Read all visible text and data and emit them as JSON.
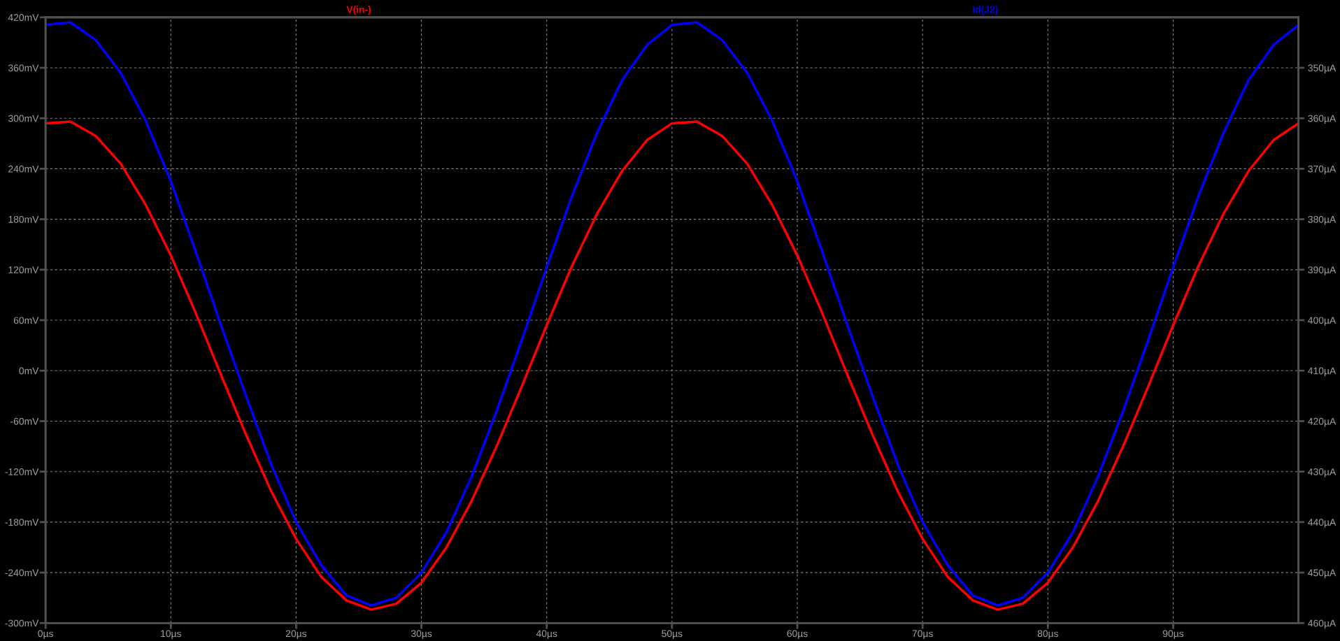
{
  "chart_data": {
    "type": "line",
    "x": [
      0,
      2,
      4,
      6,
      8,
      10,
      12,
      14,
      16,
      18,
      20,
      22,
      24,
      26,
      28,
      30,
      32,
      34,
      36,
      38,
      40,
      42,
      44,
      46,
      48,
      50,
      52,
      54,
      56,
      58,
      60,
      62,
      64,
      66,
      68,
      70,
      72,
      74,
      76,
      78,
      80,
      82,
      84,
      86,
      88,
      90,
      92,
      94,
      96,
      98,
      100
    ],
    "series": [
      {
        "name": "V(in-)",
        "color": "#ff0000",
        "values": [
          294,
          296,
          279,
          246,
          197,
          137,
          68,
          -5,
          -76,
          -143,
          -200,
          -245,
          -273,
          -284,
          -277,
          -252,
          -210,
          -155,
          -90,
          -19,
          54,
          124,
          186,
          237,
          274,
          294,
          296,
          279,
          246,
          197,
          137,
          68,
          -5,
          -76,
          -143,
          -200,
          -245,
          -273,
          -284,
          -277,
          -252,
          -210,
          -155,
          -90,
          -19,
          54,
          124,
          186,
          237,
          274,
          294
        ]
      },
      {
        "name": "Id(J2)",
        "color": "#0000ff",
        "axis": "y2",
        "values": [
          341.5,
          341,
          344.5,
          351,
          360.5,
          372.5,
          386.5,
          401,
          415,
          428.5,
          440,
          448.5,
          454.5,
          456.5,
          455,
          450,
          442,
          431,
          418,
          404,
          389.5,
          375.5,
          363,
          352.5,
          345.5,
          341.5,
          341,
          344.5,
          351,
          360.5,
          372.5,
          386.5,
          401,
          415,
          428.5,
          440,
          448.5,
          454.5,
          456.5,
          455,
          450,
          442,
          431,
          418,
          404,
          389.5,
          375.5,
          363,
          352.5,
          345.5,
          341.5
        ]
      }
    ],
    "xlim": [
      0,
      100
    ],
    "xticks": [
      {
        "value": 0,
        "label": "0µs"
      },
      {
        "value": 10,
        "label": "10µs"
      },
      {
        "value": 20,
        "label": "20µs"
      },
      {
        "value": 30,
        "label": "30µs"
      },
      {
        "value": 40,
        "label": "40µs"
      },
      {
        "value": 50,
        "label": "50µs"
      },
      {
        "value": 60,
        "label": "60µs"
      },
      {
        "value": 70,
        "label": "70µs"
      },
      {
        "value": 80,
        "label": "80µs"
      },
      {
        "value": 90,
        "label": "90µs"
      }
    ],
    "ylim": [
      -300,
      420
    ],
    "yticks": [
      {
        "value": -300,
        "label": "-300mV"
      },
      {
        "value": -240,
        "label": "-240mV"
      },
      {
        "value": -180,
        "label": "-180mV"
      },
      {
        "value": -120,
        "label": "-120mV"
      },
      {
        "value": -60,
        "label": "-60mV"
      },
      {
        "value": 0,
        "label": "0mV"
      },
      {
        "value": 60,
        "label": "60mV"
      },
      {
        "value": 120,
        "label": "120mV"
      },
      {
        "value": 180,
        "label": "180mV"
      },
      {
        "value": 240,
        "label": "240mV"
      },
      {
        "value": 300,
        "label": "300mV"
      },
      {
        "value": 360,
        "label": "360mV"
      },
      {
        "value": 420,
        "label": "420mV"
      }
    ],
    "y2lim": [
      460,
      340
    ],
    "y2ticks": [
      {
        "value": 350,
        "label": "350µA"
      },
      {
        "value": 360,
        "label": "360µA"
      },
      {
        "value": 370,
        "label": "370µA"
      },
      {
        "value": 380,
        "label": "380µA"
      },
      {
        "value": 390,
        "label": "390µA"
      },
      {
        "value": 400,
        "label": "400µA"
      },
      {
        "value": 410,
        "label": "410µA"
      },
      {
        "value": 420,
        "label": "420µA"
      },
      {
        "value": 430,
        "label": "430µA"
      },
      {
        "value": 440,
        "label": "440µA"
      },
      {
        "value": 450,
        "label": "450µA"
      },
      {
        "value": 460,
        "label": "460µA"
      }
    ],
    "grid": true,
    "line_style": "solid",
    "marker": "none"
  }
}
